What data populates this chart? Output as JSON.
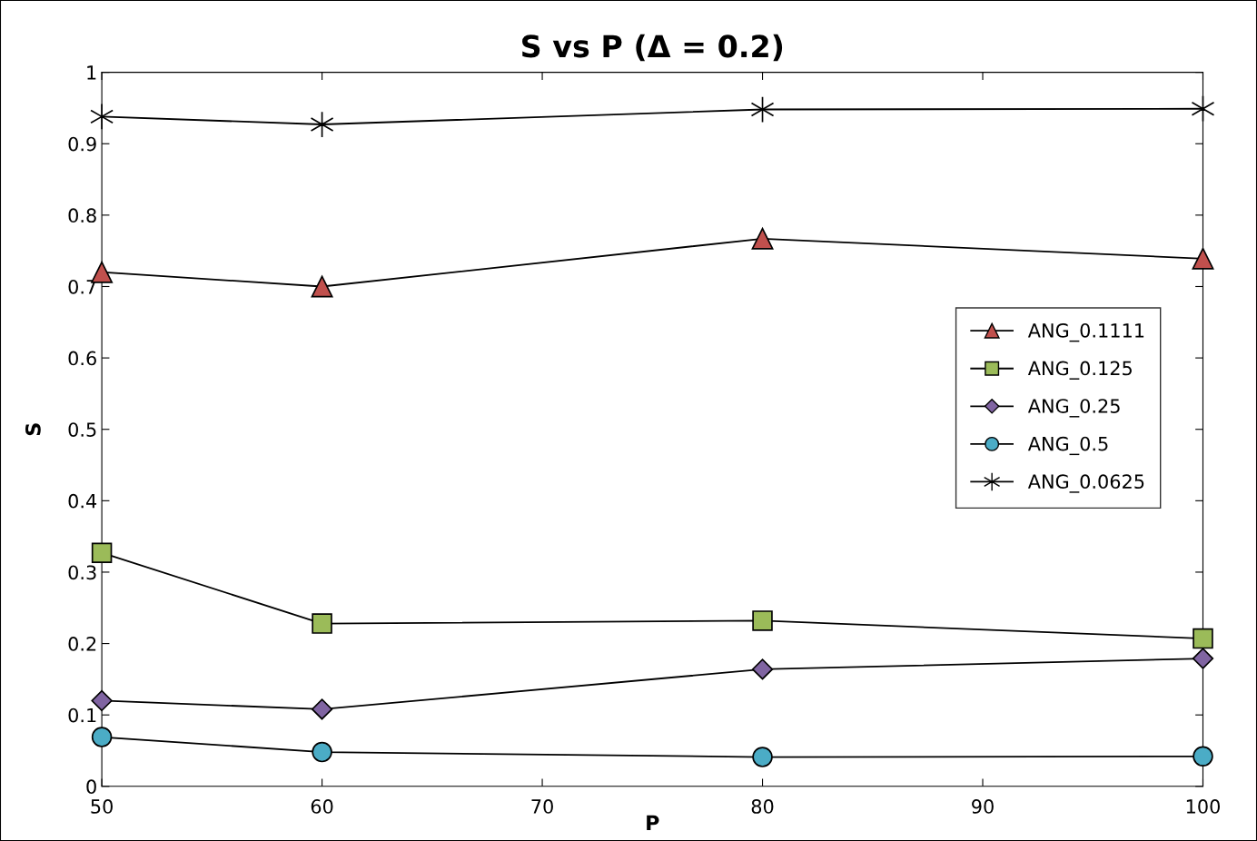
{
  "chart_data": {
    "type": "line",
    "title": "S vs P (Δ = 0.2)",
    "xlabel": "P",
    "ylabel": "S",
    "x": [
      50,
      60,
      80,
      100
    ],
    "series": [
      {
        "name": "ANG_0.1111",
        "color": "#c0504d",
        "marker": "triangle",
        "values": [
          0.72,
          0.7,
          0.767,
          0.739
        ]
      },
      {
        "name": "ANG_0.125",
        "color": "#9bbb59",
        "marker": "square",
        "values": [
          0.327,
          0.228,
          0.232,
          0.207
        ]
      },
      {
        "name": "ANG_0.25",
        "color": "#8064a2",
        "marker": "diamond",
        "values": [
          0.12,
          0.108,
          0.164,
          0.179
        ]
      },
      {
        "name": "ANG_0.5",
        "color": "#4bacc6",
        "marker": "circle",
        "values": [
          0.069,
          0.048,
          0.041,
          0.042
        ]
      },
      {
        "name": "ANG_0.0625",
        "color": "#000000",
        "marker": "cross",
        "values": [
          0.938,
          0.927,
          0.948,
          0.949
        ]
      }
    ],
    "xlim": [
      50,
      100
    ],
    "xticks": [
      50,
      60,
      70,
      80,
      90,
      100
    ],
    "ylim": [
      0,
      1
    ],
    "yticks": [
      0,
      0.1,
      0.2,
      0.3,
      0.4,
      0.5,
      0.6,
      0.7,
      0.8,
      0.9,
      1
    ],
    "grid": false,
    "legend": "center right",
    "line_style": "solid"
  }
}
